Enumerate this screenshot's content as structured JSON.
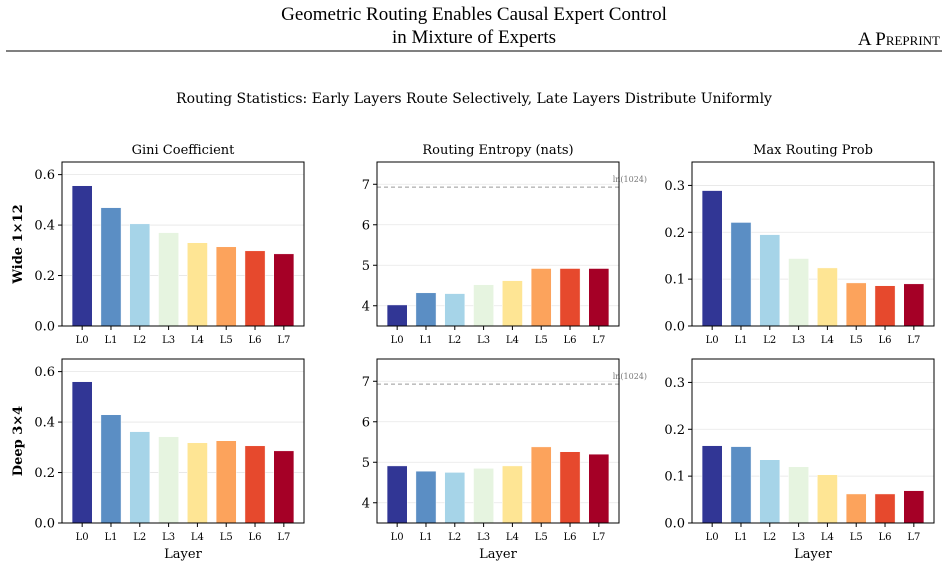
{
  "header": {
    "title_lines": [
      "Geometric Routing Enables Causal Expert Control",
      "in Mixture of Experts"
    ],
    "label": "A Preprint"
  },
  "figure": {
    "suptitle": "Routing Statistics: Early Layers Route Selectively, Late Layers Distribute Uniformly"
  },
  "chart_data": [
    {
      "type": "bar",
      "title": "Gini Coefficient",
      "ylabel": "Wide 1×12",
      "categories": [
        "L0",
        "L1",
        "L2",
        "L3",
        "L4",
        "L5",
        "L6",
        "L7"
      ],
      "values": [
        0.556,
        0.469,
        0.405,
        0.37,
        0.33,
        0.314,
        0.298,
        0.286
      ],
      "colors": [
        "#313695",
        "#5b8ec4",
        "#a6d4e8",
        "#e6f4e0",
        "#fee594",
        "#fca35c",
        "#e6492d",
        "#a50026"
      ],
      "ylim": [
        0,
        0.65
      ],
      "yticks": [
        {
          "value": 0,
          "label": "0.0"
        },
        0.2,
        0.4,
        0.6
      ],
      "grid": true
    },
    {
      "type": "bar",
      "title": "Routing Entropy (nats)",
      "categories": [
        "L0",
        "L1",
        "L2",
        "L3",
        "L4",
        "L5",
        "L6",
        "L7"
      ],
      "values": [
        4.02,
        4.32,
        4.3,
        4.52,
        4.62,
        4.92,
        4.92,
        4.92
      ],
      "colors": [
        "#313695",
        "#5b8ec4",
        "#a6d4e8",
        "#e6f4e0",
        "#fee594",
        "#fca35c",
        "#e6492d",
        "#a50026"
      ],
      "ylim": [
        3.5,
        7.55
      ],
      "yticks": [
        4,
        5,
        6,
        7
      ],
      "grid": true,
      "hline": {
        "value": 6.93,
        "label": "ln(1024)"
      }
    },
    {
      "type": "bar",
      "title": "Max Routing Prob",
      "categories": [
        "L0",
        "L1",
        "L2",
        "L3",
        "L4",
        "L5",
        "L6",
        "L7"
      ],
      "values": [
        0.289,
        0.221,
        0.195,
        0.144,
        0.124,
        0.092,
        0.086,
        0.09
      ],
      "colors": [
        "#313695",
        "#5b8ec4",
        "#a6d4e8",
        "#e6f4e0",
        "#fee594",
        "#fca35c",
        "#e6492d",
        "#a50026"
      ],
      "ylim": [
        0,
        0.35
      ],
      "yticks": [
        {
          "value": 0,
          "label": "0.0"
        },
        0.1,
        0.2,
        0.3
      ],
      "grid": true
    },
    {
      "type": "bar",
      "ylabel": "Deep 3×4",
      "xlabel": "Layer",
      "categories": [
        "L0",
        "L1",
        "L2",
        "L3",
        "L4",
        "L5",
        "L6",
        "L7"
      ],
      "values": [
        0.56,
        0.429,
        0.362,
        0.342,
        0.318,
        0.326,
        0.306,
        0.286
      ],
      "colors": [
        "#313695",
        "#5b8ec4",
        "#a6d4e8",
        "#e6f4e0",
        "#fee594",
        "#fca35c",
        "#e6492d",
        "#a50026"
      ],
      "ylim": [
        0,
        0.65
      ],
      "yticks": [
        {
          "value": 0,
          "label": "0.0"
        },
        0.2,
        0.4,
        0.6
      ],
      "grid": true
    },
    {
      "type": "bar",
      "xlabel": "Layer",
      "categories": [
        "L0",
        "L1",
        "L2",
        "L3",
        "L4",
        "L5",
        "L6",
        "L7"
      ],
      "values": [
        4.91,
        4.78,
        4.75,
        4.85,
        4.91,
        5.38,
        5.26,
        5.2
      ],
      "colors": [
        "#313695",
        "#5b8ec4",
        "#a6d4e8",
        "#e6f4e0",
        "#fee594",
        "#fca35c",
        "#e6492d",
        "#a50026"
      ],
      "ylim": [
        3.5,
        7.55
      ],
      "yticks": [
        4,
        5,
        6,
        7
      ],
      "grid": true,
      "hline": {
        "value": 6.93,
        "label": "ln(1024)"
      }
    },
    {
      "type": "bar",
      "xlabel": "Layer",
      "categories": [
        "L0",
        "L1",
        "L2",
        "L3",
        "L4",
        "L5",
        "L6",
        "L7"
      ],
      "values": [
        0.165,
        0.163,
        0.135,
        0.12,
        0.103,
        0.062,
        0.062,
        0.069
      ],
      "colors": [
        "#313695",
        "#5b8ec4",
        "#a6d4e8",
        "#e6f4e0",
        "#fee594",
        "#fca35c",
        "#e6492d",
        "#a50026"
      ],
      "ylim": [
        0,
        0.35
      ],
      "yticks": [
        {
          "value": 0,
          "label": "0.0"
        },
        0.1,
        0.2,
        0.3
      ],
      "grid": true
    }
  ]
}
